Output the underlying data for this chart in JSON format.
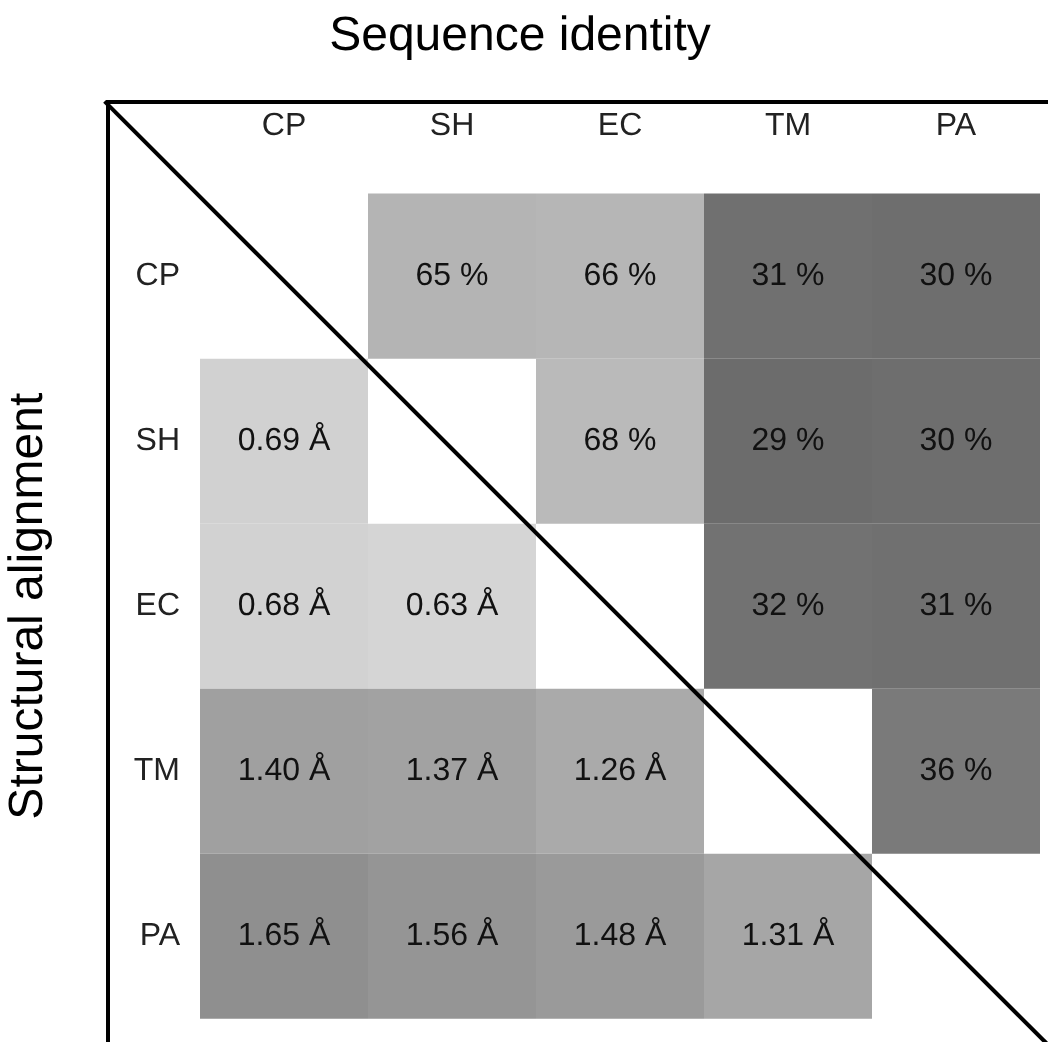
{
  "chart_data": {
    "type": "heatmap",
    "title": "Sequence identity",
    "ylabel": "Structural alignment",
    "categories": [
      "CP",
      "SH",
      "EC",
      "TM",
      "PA"
    ],
    "y_categories": [
      "CP",
      "SH",
      "EC",
      "TM",
      "PA"
    ],
    "cells": [
      [
        null,
        65,
        66,
        31,
        30
      ],
      [
        0.69,
        null,
        68,
        29,
        30
      ],
      [
        0.68,
        0.63,
        null,
        32,
        31
      ],
      [
        1.4,
        1.37,
        1.26,
        null,
        36
      ],
      [
        1.65,
        1.56,
        1.48,
        1.31,
        null
      ]
    ],
    "cell_labels": [
      [
        null,
        "65 %",
        "66 %",
        "31 %",
        "30 %"
      ],
      [
        "0.69 Å",
        null,
        "68 %",
        "29 %",
        "30 %"
      ],
      [
        "0.68 Å",
        "0.63 Å",
        null,
        "32 %",
        "31 %"
      ],
      [
        "1.40 Å",
        "1.37 Å",
        "1.26 Å",
        null,
        "36 %"
      ],
      [
        "1.65 Å",
        "1.56 Å",
        "1.48 Å",
        "1.31 Å",
        null
      ]
    ]
  }
}
